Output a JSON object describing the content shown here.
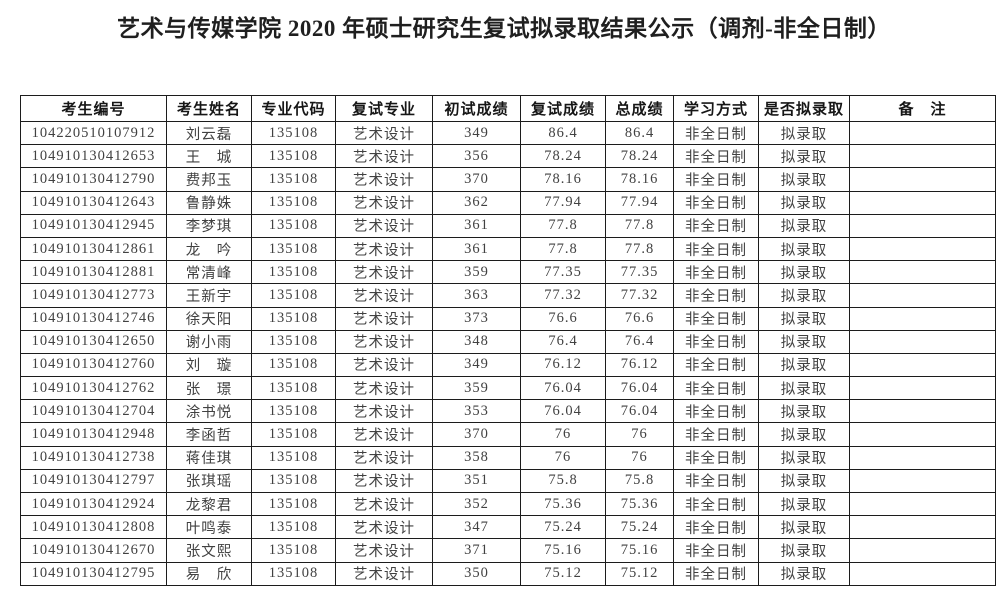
{
  "page": {
    "title": "艺术与传媒学院 2020 年硕士研究生复试拟录取结果公示（调剂-非全日制）"
  },
  "table": {
    "headers": [
      "考生编号",
      "考生姓名",
      "专业代码",
      "复试专业",
      "初试成绩",
      "复试成绩",
      "总成绩",
      "学习方式",
      "是否拟录取",
      "备　注"
    ],
    "rows": [
      [
        "104220510107912",
        "刘云磊",
        "135108",
        "艺术设计",
        "349",
        "86.4",
        "86.4",
        "非全日制",
        "拟录取",
        ""
      ],
      [
        "104910130412653",
        "王　城",
        "135108",
        "艺术设计",
        "356",
        "78.24",
        "78.24",
        "非全日制",
        "拟录取",
        ""
      ],
      [
        "104910130412790",
        "费邦玉",
        "135108",
        "艺术设计",
        "370",
        "78.16",
        "78.16",
        "非全日制",
        "拟录取",
        ""
      ],
      [
        "104910130412643",
        "鲁静姝",
        "135108",
        "艺术设计",
        "362",
        "77.94",
        "77.94",
        "非全日制",
        "拟录取",
        ""
      ],
      [
        "104910130412945",
        "李梦琪",
        "135108",
        "艺术设计",
        "361",
        "77.8",
        "77.8",
        "非全日制",
        "拟录取",
        ""
      ],
      [
        "104910130412861",
        "龙　吟",
        "135108",
        "艺术设计",
        "361",
        "77.8",
        "77.8",
        "非全日制",
        "拟录取",
        ""
      ],
      [
        "104910130412881",
        "常清峰",
        "135108",
        "艺术设计",
        "359",
        "77.35",
        "77.35",
        "非全日制",
        "拟录取",
        ""
      ],
      [
        "104910130412773",
        "王新宇",
        "135108",
        "艺术设计",
        "363",
        "77.32",
        "77.32",
        "非全日制",
        "拟录取",
        ""
      ],
      [
        "104910130412746",
        "徐天阳",
        "135108",
        "艺术设计",
        "373",
        "76.6",
        "76.6",
        "非全日制",
        "拟录取",
        ""
      ],
      [
        "104910130412650",
        "谢小雨",
        "135108",
        "艺术设计",
        "348",
        "76.4",
        "76.4",
        "非全日制",
        "拟录取",
        ""
      ],
      [
        "104910130412760",
        "刘　璇",
        "135108",
        "艺术设计",
        "349",
        "76.12",
        "76.12",
        "非全日制",
        "拟录取",
        ""
      ],
      [
        "104910130412762",
        "张　璟",
        "135108",
        "艺术设计",
        "359",
        "76.04",
        "76.04",
        "非全日制",
        "拟录取",
        ""
      ],
      [
        "104910130412704",
        "涂书悦",
        "135108",
        "艺术设计",
        "353",
        "76.04",
        "76.04",
        "非全日制",
        "拟录取",
        ""
      ],
      [
        "104910130412948",
        "李函哲",
        "135108",
        "艺术设计",
        "370",
        "76",
        "76",
        "非全日制",
        "拟录取",
        ""
      ],
      [
        "104910130412738",
        "蒋佳琪",
        "135108",
        "艺术设计",
        "358",
        "76",
        "76",
        "非全日制",
        "拟录取",
        ""
      ],
      [
        "104910130412797",
        "张琪瑶",
        "135108",
        "艺术设计",
        "351",
        "75.8",
        "75.8",
        "非全日制",
        "拟录取",
        ""
      ],
      [
        "104910130412924",
        "龙黎君",
        "135108",
        "艺术设计",
        "352",
        "75.36",
        "75.36",
        "非全日制",
        "拟录取",
        ""
      ],
      [
        "104910130412808",
        "叶鸣泰",
        "135108",
        "艺术设计",
        "347",
        "75.24",
        "75.24",
        "非全日制",
        "拟录取",
        ""
      ],
      [
        "104910130412670",
        "张文熙",
        "135108",
        "艺术设计",
        "371",
        "75.16",
        "75.16",
        "非全日制",
        "拟录取",
        ""
      ],
      [
        "104910130412795",
        "易　欣",
        "135108",
        "艺术设计",
        "350",
        "75.12",
        "75.12",
        "非全日制",
        "拟录取",
        ""
      ]
    ]
  }
}
